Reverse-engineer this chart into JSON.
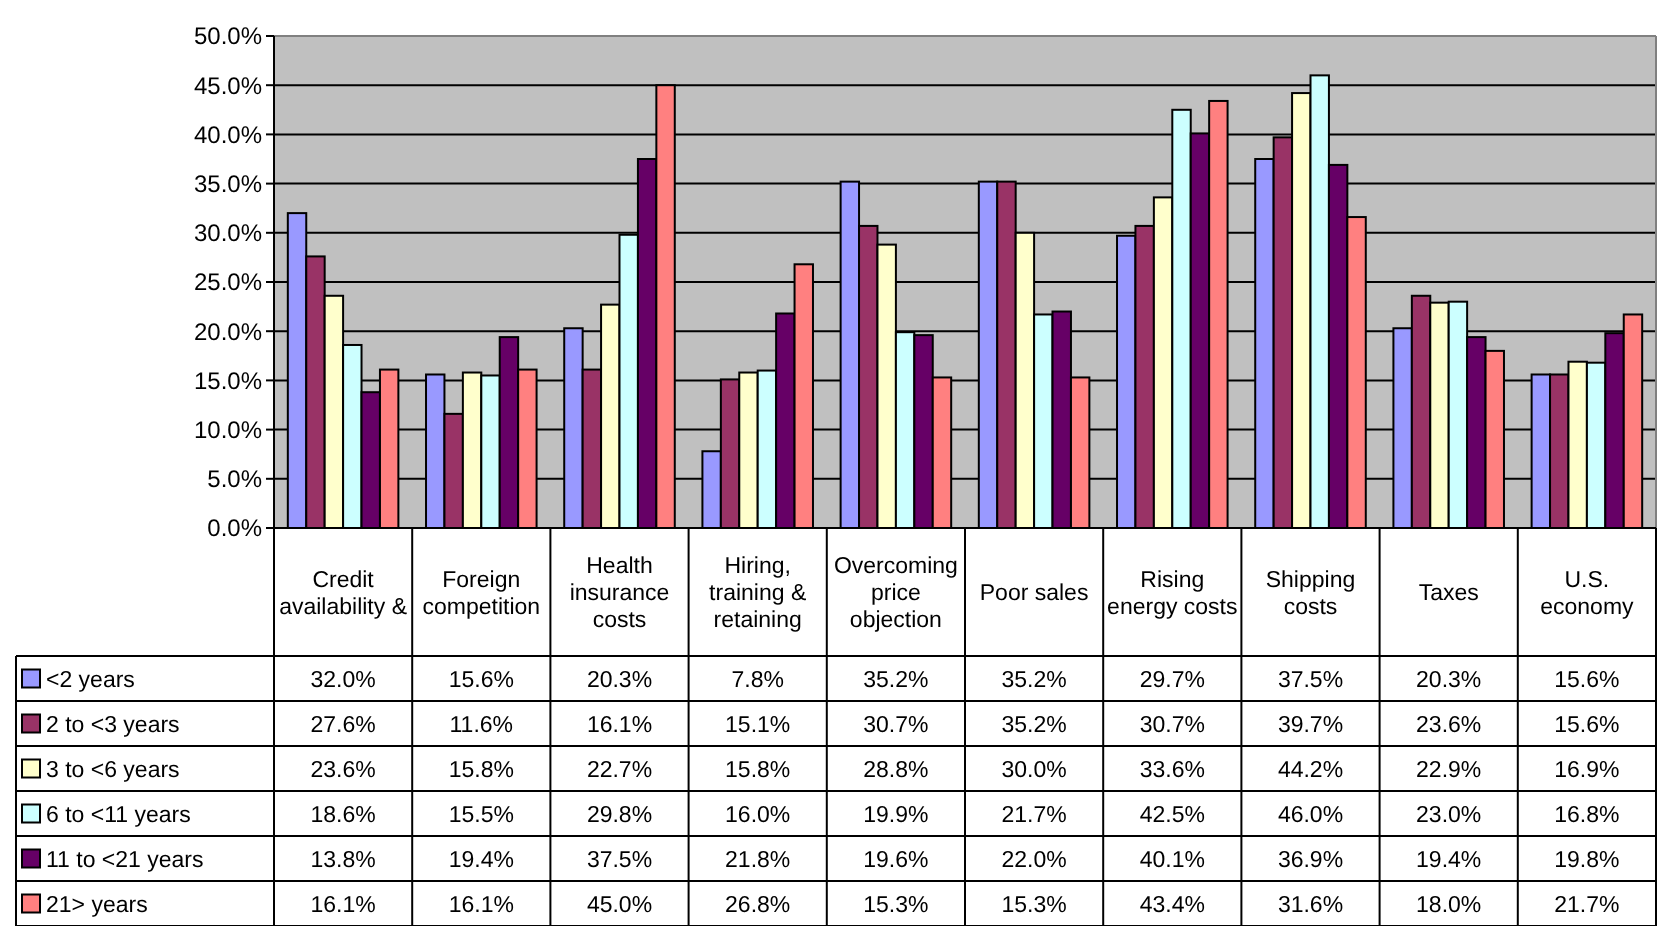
{
  "chart_data": {
    "type": "bar",
    "categories": [
      "Credit availability &",
      "Foreign competition",
      "Health insurance costs",
      "Hiring, training & retaining",
      "Overcoming price objection",
      "Poor sales",
      "Rising energy costs",
      "Shipping costs",
      "Taxes",
      "U.S. economy"
    ],
    "series": [
      {
        "name": "<2 years",
        "color": "#9999ff",
        "values": [
          32.0,
          15.6,
          20.3,
          7.8,
          35.2,
          35.2,
          29.7,
          37.5,
          20.3,
          15.6
        ],
        "value_labels": [
          "32.0%",
          "15.6%",
          "20.3%",
          "7.8%",
          "35.2%",
          "35.2%",
          "29.7%",
          "37.5%",
          "20.3%",
          "15.6%"
        ]
      },
      {
        "name": "2 to <3 years",
        "color": "#993366",
        "values": [
          27.6,
          11.6,
          16.1,
          15.1,
          30.7,
          35.2,
          30.7,
          39.7,
          23.6,
          15.6
        ],
        "value_labels": [
          "27.6%",
          "11.6%",
          "16.1%",
          "15.1%",
          "30.7%",
          "35.2%",
          "30.7%",
          "39.7%",
          "23.6%",
          "15.6%"
        ]
      },
      {
        "name": "3 to <6 years",
        "color": "#ffffcc",
        "values": [
          23.6,
          15.8,
          22.7,
          15.8,
          28.8,
          30.0,
          33.6,
          44.2,
          22.9,
          16.9
        ],
        "value_labels": [
          "23.6%",
          "15.8%",
          "22.7%",
          "15.8%",
          "28.8%",
          "30.0%",
          "33.6%",
          "44.2%",
          "22.9%",
          "16.9%"
        ]
      },
      {
        "name": "6 to <11 years",
        "color": "#ccffff",
        "values": [
          18.6,
          15.5,
          29.8,
          16.0,
          19.9,
          21.7,
          42.5,
          46.0,
          23.0,
          16.8
        ],
        "value_labels": [
          "18.6%",
          "15.5%",
          "29.8%",
          "16.0%",
          "19.9%",
          "21.7%",
          "42.5%",
          "46.0%",
          "23.0%",
          "16.8%"
        ]
      },
      {
        "name": "11 to <21 years",
        "color": "#660066",
        "values": [
          13.8,
          19.4,
          37.5,
          21.8,
          19.6,
          22.0,
          40.1,
          36.9,
          19.4,
          19.8
        ],
        "value_labels": [
          "13.8%",
          "19.4%",
          "37.5%",
          "21.8%",
          "19.6%",
          "22.0%",
          "40.1%",
          "36.9%",
          "19.4%",
          "19.8%"
        ]
      },
      {
        "name": "21> years",
        "color": "#ff8080",
        "values": [
          16.1,
          16.1,
          45.0,
          26.8,
          15.3,
          15.3,
          43.4,
          31.6,
          18.0,
          21.7
        ],
        "value_labels": [
          "16.1%",
          "16.1%",
          "45.0%",
          "26.8%",
          "15.3%",
          "15.3%",
          "43.4%",
          "31.6%",
          "18.0%",
          "21.7%"
        ]
      }
    ],
    "ylim": [
      0,
      50
    ],
    "yticks": [
      {
        "value": 0,
        "label": "0.0%"
      },
      {
        "value": 5,
        "label": "5.0%"
      },
      {
        "value": 10,
        "label": "10.0%"
      },
      {
        "value": 15,
        "label": "15.0%"
      },
      {
        "value": 20,
        "label": "20.0%"
      },
      {
        "value": 25,
        "label": "25.0%"
      },
      {
        "value": 30,
        "label": "30.0%"
      },
      {
        "value": 35,
        "label": "35.0%"
      },
      {
        "value": 40,
        "label": "40.0%"
      },
      {
        "value": 45,
        "label": "45.0%"
      },
      {
        "value": 50,
        "label": "50.0%"
      }
    ],
    "grid": "y",
    "legend": "bottom"
  }
}
